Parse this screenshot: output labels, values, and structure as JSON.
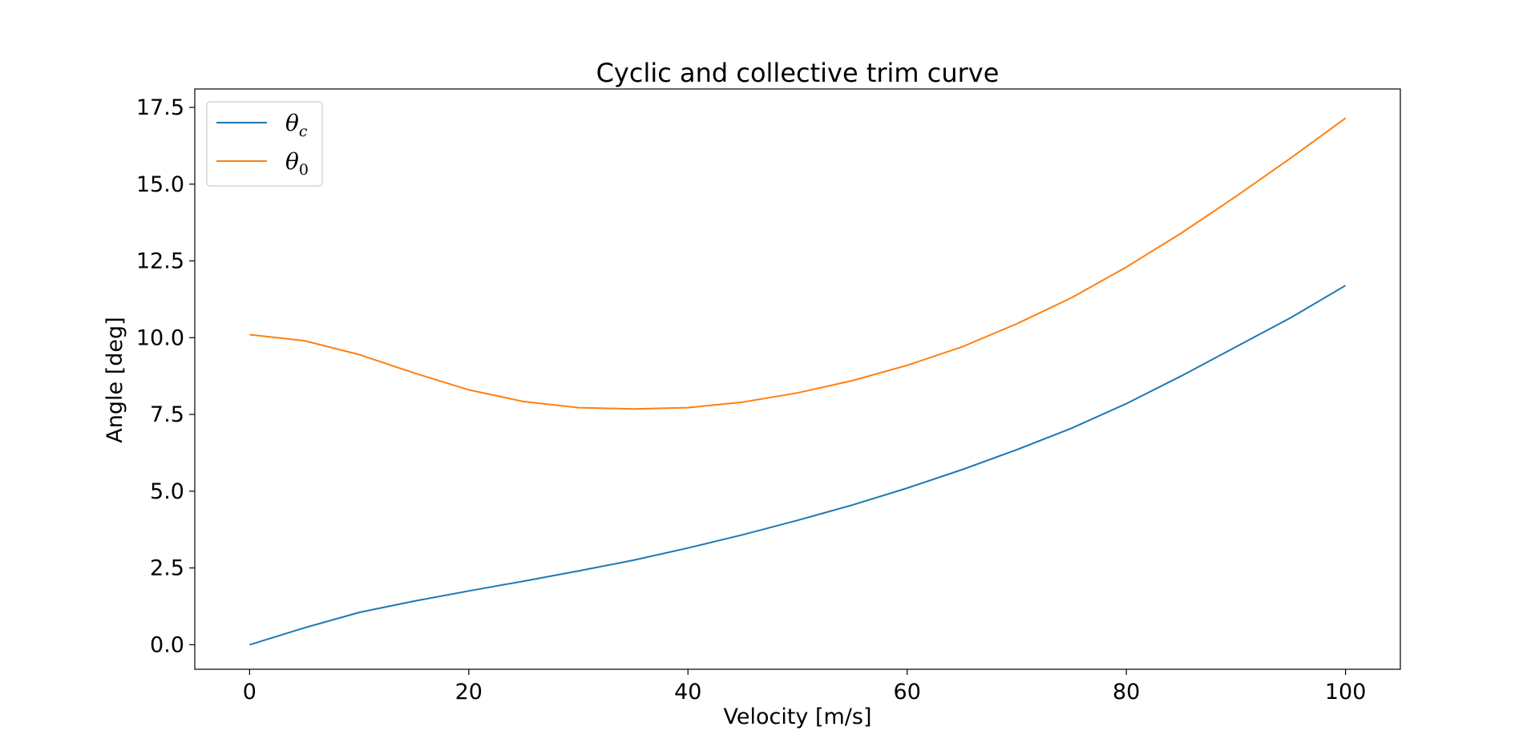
{
  "chart_data": {
    "type": "line",
    "title": "Cyclic and collective trim curve",
    "xlabel": "Velocity [m/s]",
    "ylabel": "Angle [deg]",
    "xlim": [
      -5,
      105
    ],
    "ylim": [
      -0.8,
      18.1
    ],
    "xticks": [
      0,
      20,
      40,
      60,
      80,
      100
    ],
    "xtick_labels": [
      "0",
      "20",
      "40",
      "60",
      "80",
      "100"
    ],
    "yticks": [
      0.0,
      2.5,
      5.0,
      7.5,
      10.0,
      12.5,
      15.0,
      17.5
    ],
    "ytick_labels": [
      "0.0",
      "2.5",
      "5.0",
      "7.5",
      "10.0",
      "12.5",
      "15.0",
      "17.5"
    ],
    "grid": false,
    "legend_position": "top-left",
    "x": [
      0,
      5,
      10,
      15,
      20,
      25,
      30,
      35,
      40,
      45,
      50,
      55,
      60,
      65,
      70,
      75,
      80,
      85,
      90,
      95,
      100
    ],
    "series": [
      {
        "name": "θ",
        "subscript": "c",
        "color": "#1f77b4",
        "values": [
          0.0,
          0.55,
          1.05,
          1.42,
          1.75,
          2.07,
          2.4,
          2.75,
          3.15,
          3.58,
          4.05,
          4.55,
          5.1,
          5.7,
          6.35,
          7.05,
          7.85,
          8.75,
          9.7,
          10.65,
          11.7
        ]
      },
      {
        "name": "θ",
        "subscript": "0",
        "color": "#ff7f0e",
        "values": [
          10.1,
          9.9,
          9.45,
          8.85,
          8.3,
          7.92,
          7.72,
          7.68,
          7.72,
          7.9,
          8.2,
          8.6,
          9.1,
          9.7,
          10.45,
          11.3,
          12.3,
          13.4,
          14.6,
          15.85,
          17.15
        ]
      }
    ]
  }
}
